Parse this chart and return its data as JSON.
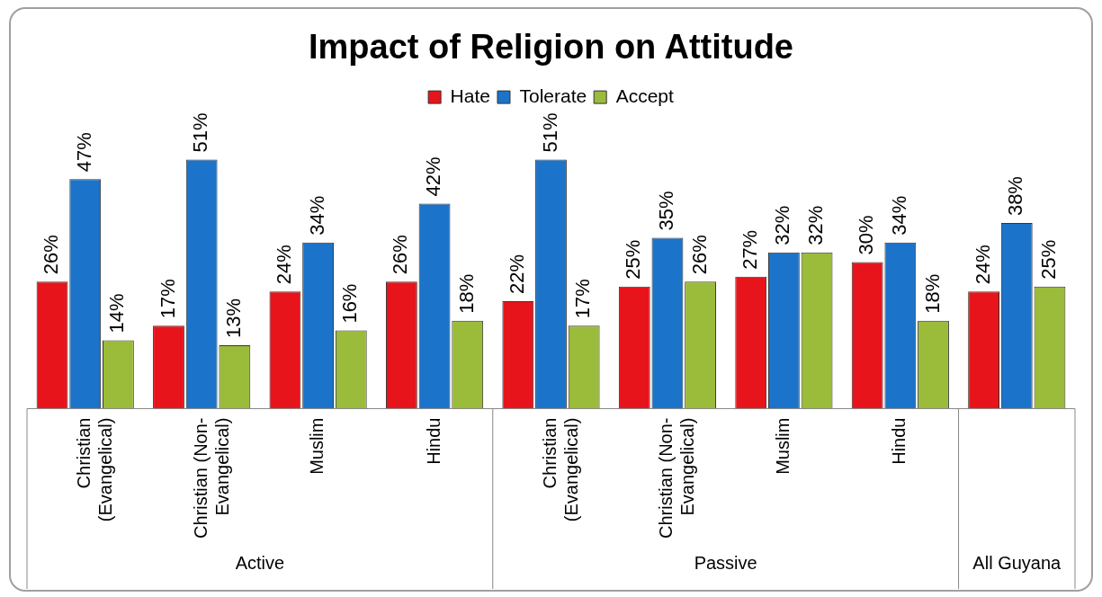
{
  "chart_data": {
    "type": "bar",
    "title": "Impact of Religion on Attitude",
    "categories": [
      "Christian (Evangelical)",
      "Christian (Non-Evangelical)",
      "Muslim",
      "Hindu",
      "Christian (Evangelical)",
      "Christian (Non-Evangelical)",
      "Muslim",
      "Hindu",
      null
    ],
    "series": [
      {
        "name": "Hate",
        "color": "#e8141b",
        "values": [
          26,
          17,
          24,
          26,
          22,
          25,
          27,
          30,
          24
        ],
        "value_labels": [
          "26%",
          "17%",
          "24%",
          "26%",
          "22%",
          "25%",
          "27%",
          "30%",
          "24%"
        ]
      },
      {
        "name": "Tolerate",
        "color": "#1b74c9",
        "values": [
          47,
          51,
          34,
          42,
          51,
          35,
          32,
          34,
          38
        ],
        "value_labels": [
          "47%",
          "51%",
          "34%",
          "42%",
          "51%",
          "35%",
          "32%",
          "34%",
          "38%"
        ]
      },
      {
        "name": "Accept",
        "color": "#9bbb3a",
        "values": [
          14,
          13,
          16,
          18,
          17,
          26,
          32,
          18,
          25
        ],
        "value_labels": [
          "14%",
          "13%",
          "16%",
          "18%",
          "17%",
          "26%",
          "32%",
          "18%",
          "25%"
        ]
      }
    ],
    "annotations": [
      "Active",
      "Passive",
      "All Guyana"
    ],
    "legend": "top",
    "grid": false
  }
}
